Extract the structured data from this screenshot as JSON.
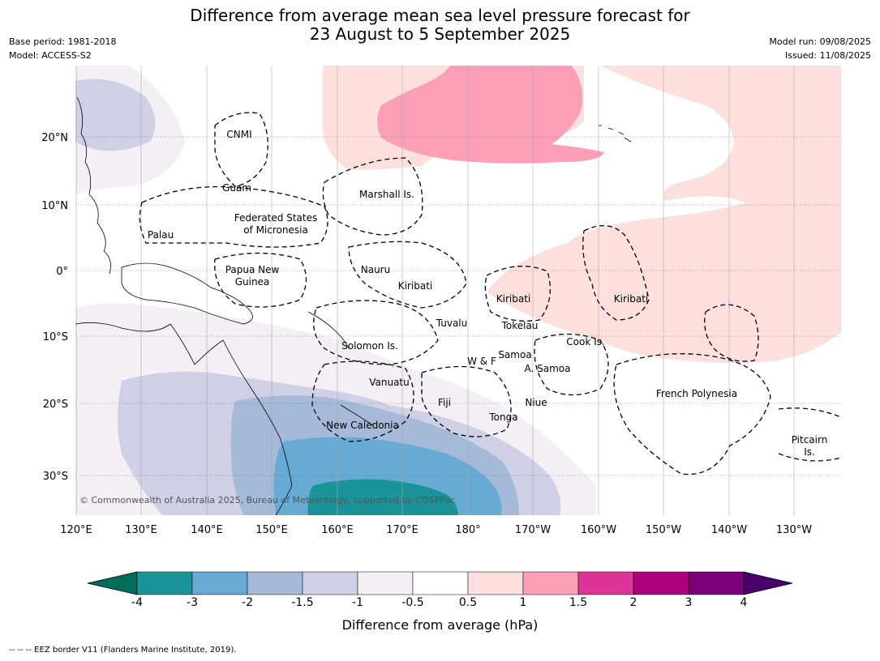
{
  "header": {
    "title_line1": "Difference from average mean sea level pressure forecast for",
    "title_line2": "23 August to 5 September 2025",
    "base_period": "Base period: 1981-2018",
    "model": "Model: ACCESS-S2",
    "model_run": "Model run: 09/08/2025",
    "issued": "Issued: 11/08/2025"
  },
  "map": {
    "lon_labels": [
      "120°E",
      "130°E",
      "140°E",
      "150°E",
      "160°E",
      "170°E",
      "180°",
      "170°W",
      "160°W",
      "150°W",
      "140°W",
      "130°W"
    ],
    "lat_labels": [
      "20°N",
      "10°N",
      "0°",
      "10°S",
      "20°S",
      "30°S"
    ],
    "copyright": "© Commonwealth of Australia 2025, Bureau of Meteorology, supported by COSPPac",
    "region_labels": [
      {
        "key": "cnmi",
        "text": "CNMI"
      },
      {
        "key": "guam",
        "text": "Guam"
      },
      {
        "key": "marshall",
        "text": "Marshall Is."
      },
      {
        "key": "fsm1",
        "text": "Federated States"
      },
      {
        "key": "fsm2",
        "text": "of Micronesia"
      },
      {
        "key": "palau",
        "text": "Palau"
      },
      {
        "key": "png1",
        "text": "Papua New"
      },
      {
        "key": "png2",
        "text": "Guinea"
      },
      {
        "key": "nauru",
        "text": "Nauru"
      },
      {
        "key": "kiribati_w",
        "text": "Kiribati"
      },
      {
        "key": "kiribati_c",
        "text": "Kiribati"
      },
      {
        "key": "kiribati_e",
        "text": "Kiribati"
      },
      {
        "key": "tuvalu",
        "text": "Tuvalu"
      },
      {
        "key": "tokelau",
        "text": "Tokelau"
      },
      {
        "key": "solomon",
        "text": "Solomon Is."
      },
      {
        "key": "samoa",
        "text": "Samoa"
      },
      {
        "key": "wf",
        "text": "W & F"
      },
      {
        "key": "asamoa",
        "text": "A. Samoa"
      },
      {
        "key": "cook",
        "text": "Cook Is."
      },
      {
        "key": "vanuatu",
        "text": "Vanuatu"
      },
      {
        "key": "fiji",
        "text": "Fiji"
      },
      {
        "key": "niue",
        "text": "Niue"
      },
      {
        "key": "tonga",
        "text": "Tonga"
      },
      {
        "key": "frpoly",
        "text": "French Polynesia"
      },
      {
        "key": "newcal",
        "text": "New Caledonia"
      },
      {
        "key": "pitcairn1",
        "text": "Pitcairn"
      },
      {
        "key": "pitcairn2",
        "text": "Is."
      }
    ]
  },
  "colorbar": {
    "labels": [
      "-4",
      "-3",
      "-2",
      "-1.5",
      "-1",
      "-0.5",
      "0.5",
      "1",
      "1.5",
      "2",
      "3",
      "4"
    ],
    "colors": [
      "#1a9399",
      "#67aad3",
      "#a5b9d8",
      "#cfcfe6",
      "#f3eff5",
      "#ffffff",
      "#fde0dd",
      "#fa9fb5",
      "#dd3497",
      "#ae017e",
      "#7a0177"
    ],
    "under_color": "#016c59",
    "over_color": "#49006a",
    "title": "Difference from average (hPa)"
  },
  "footnote": "--  --  -- EEZ border V11 (Flanders Marine Institute, 2019)."
}
